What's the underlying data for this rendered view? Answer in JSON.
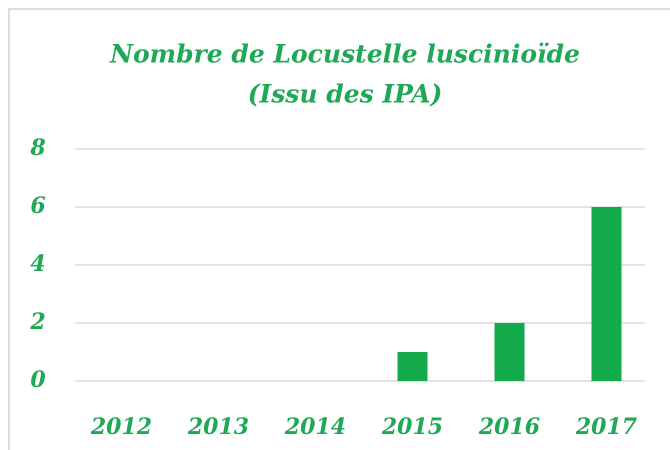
{
  "chart_data": {
    "type": "bar",
    "title": "Nombre de Locustelle luscinioïde",
    "subtitle": "(Issu des IPA)",
    "categories": [
      "2012",
      "2013",
      "2014",
      "2015",
      "2016",
      "2017"
    ],
    "values": [
      0,
      0,
      0,
      1,
      2,
      6
    ],
    "color": "#13aa4b",
    "ylim": [
      0,
      8
    ],
    "yticks": [
      0,
      2,
      4,
      6,
      8
    ],
    "grid": true
  }
}
